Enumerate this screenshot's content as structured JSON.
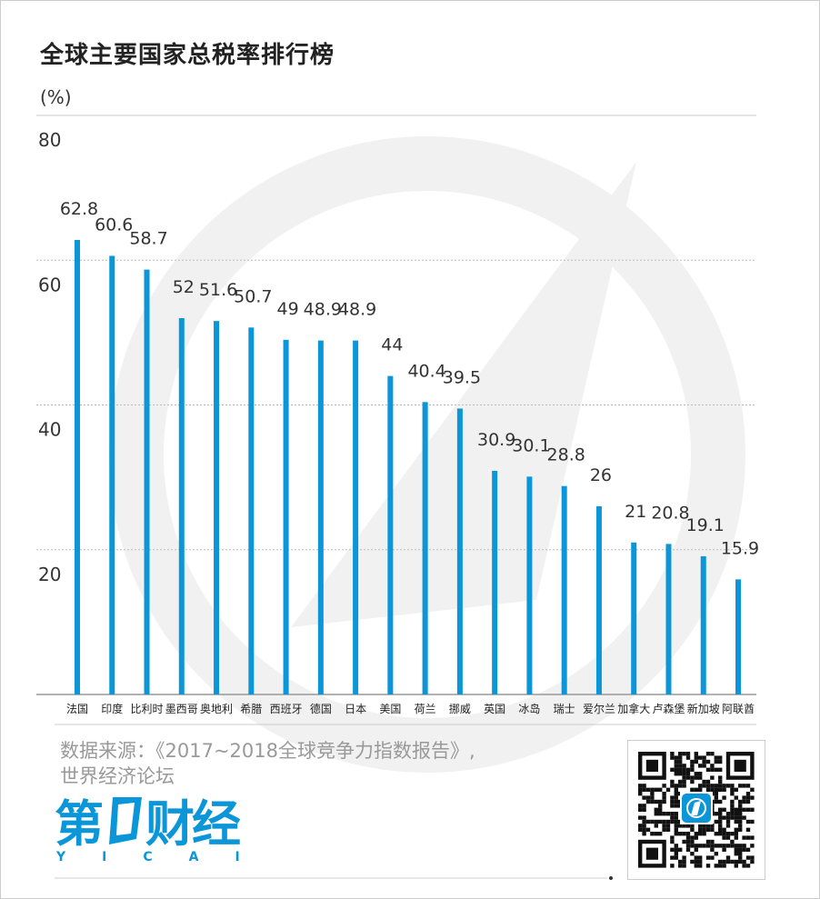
{
  "title": "全球主要国家总税率排行榜",
  "unit": "(%)",
  "source_line1": "数据来源：《2017~2018全球竞争力指数报告》,",
  "source_line2": "世界经济论坛",
  "logo": {
    "text": "第一财经",
    "sub": "YICAI",
    "color": "#0a96d8"
  },
  "chart_data": {
    "type": "bar",
    "title": "全球主要国家总税率排行榜",
    "ylabel": "(%)",
    "xlabel": "",
    "ylim": [
      0,
      80
    ],
    "yticks": [
      20,
      40,
      60,
      80
    ],
    "grid": true,
    "bar_color": "#0a96d8",
    "categories": [
      "法国",
      "印度",
      "比利时",
      "墨西哥",
      "奥地利",
      "希腊",
      "西班牙",
      "德国",
      "日本",
      "美国",
      "荷兰",
      "挪威",
      "英国",
      "冰岛",
      "瑞士",
      "爱尔兰",
      "加拿大",
      "卢森堡",
      "新加坡",
      "阿联酋"
    ],
    "values": [
      62.8,
      60.6,
      58.7,
      52,
      51.6,
      50.7,
      49,
      48.9,
      48.9,
      44,
      40.4,
      39.5,
      30.9,
      30.1,
      28.8,
      26,
      21,
      20.8,
      19.1,
      15.9
    ]
  }
}
